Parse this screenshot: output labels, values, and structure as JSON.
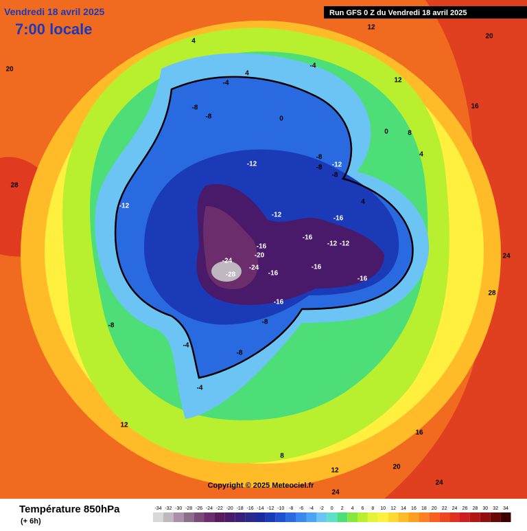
{
  "header": {
    "date": "Vendredi 18 avril 2025",
    "time": "7:00 locale",
    "run": "Run GFS 0 Z du Vendredi 18 avril 2025"
  },
  "copyright": "Copyright © 2025 Meteociel.fr",
  "legend": {
    "title": "Température 850hPa",
    "lead": "(+ 6h)",
    "ticks": [
      -34,
      -32,
      -30,
      -28,
      -26,
      -24,
      -22,
      -20,
      -18,
      -16,
      -14,
      -12,
      -10,
      -8,
      -6,
      -4,
      -2,
      0,
      2,
      4,
      6,
      8,
      10,
      12,
      14,
      16,
      18,
      20,
      22,
      24,
      26,
      28,
      30,
      32,
      34
    ],
    "colors": [
      "#d8d8d8",
      "#c0b8c0",
      "#a890a8",
      "#8c6e8c",
      "#7a4a7a",
      "#6c2d6c",
      "#5a1a5e",
      "#4a1a6a",
      "#3a1f7a",
      "#2a2a8a",
      "#1a2aa0",
      "#1a3ab8",
      "#2050d0",
      "#2a6ae0",
      "#3a88ee",
      "#4aa6f4",
      "#6cc4f4",
      "#5ee0c8",
      "#4ede78",
      "#84e840",
      "#b8f030",
      "#e4f438",
      "#fff040",
      "#ffd830",
      "#ffbc28",
      "#ffa020",
      "#ff8020",
      "#f86020",
      "#ee4820",
      "#e03020",
      "#cc2020",
      "#b01818",
      "#901010",
      "#6a0808",
      "#400000"
    ]
  },
  "map_labels": [
    -28,
    -24,
    -24,
    -20,
    -16,
    -16,
    -16,
    -16,
    -16,
    -16,
    -16,
    -12,
    -12,
    -12,
    -12,
    -12,
    -12,
    -8,
    -8,
    -8,
    -8,
    -8,
    -8,
    -8,
    -8,
    -4,
    -4,
    -4,
    -4,
    0,
    0,
    4,
    4,
    4,
    4,
    8,
    8,
    12,
    12,
    12,
    12,
    16,
    16,
    20,
    20,
    20,
    24,
    24,
    28,
    28,
    24
  ]
}
